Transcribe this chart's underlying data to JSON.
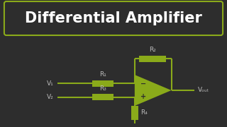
{
  "title": "Differential Amplifier",
  "bg_color": "#2d2d2d",
  "title_box_color": "#2d2d2d",
  "title_box_border": "#8aaa1a",
  "title_text_color": "#ffffff",
  "circuit_color": "#8aaa1a",
  "label_color": "#bbbbbb",
  "title_fontsize": 15,
  "label_fontsize": 6.5,
  "r1_label": "R₁",
  "r2_label": "R₂",
  "r3_label": "R₃",
  "r4_label": "R₄",
  "v1_label": "V₁",
  "v2_label": "V₂",
  "vout_label": "Vₒᵤₜ",
  "minus_label": "−",
  "plus_label": "+"
}
